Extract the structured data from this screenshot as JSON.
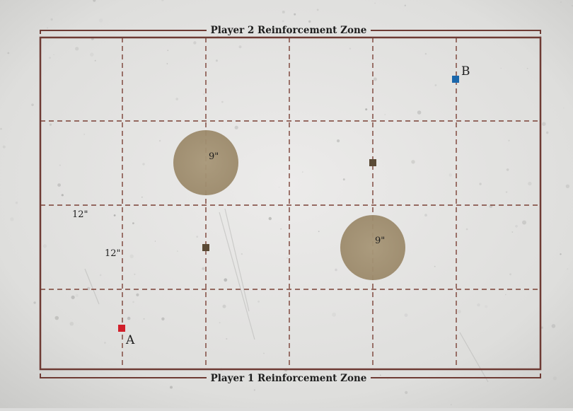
{
  "zones": {
    "top_label": "Player 2 Reinforcement Zone",
    "bottom_label": "Player 1 Reinforcement Zone"
  },
  "markers": {
    "a_label": "A",
    "b_label": "B"
  },
  "measurements": {
    "col_width": "12\"",
    "row_height": "12\"",
    "circle_left_radius": "9\"",
    "circle_right_radius": "9\""
  },
  "colors": {
    "board_line": "#6e3b34",
    "grid_dash": "#7a4035",
    "terrain_fill": "#a08e70",
    "objective": "#5a4a35",
    "marker_a": "#d1202b",
    "marker_b": "#1b67ab",
    "text": "#1e1e1e"
  }
}
